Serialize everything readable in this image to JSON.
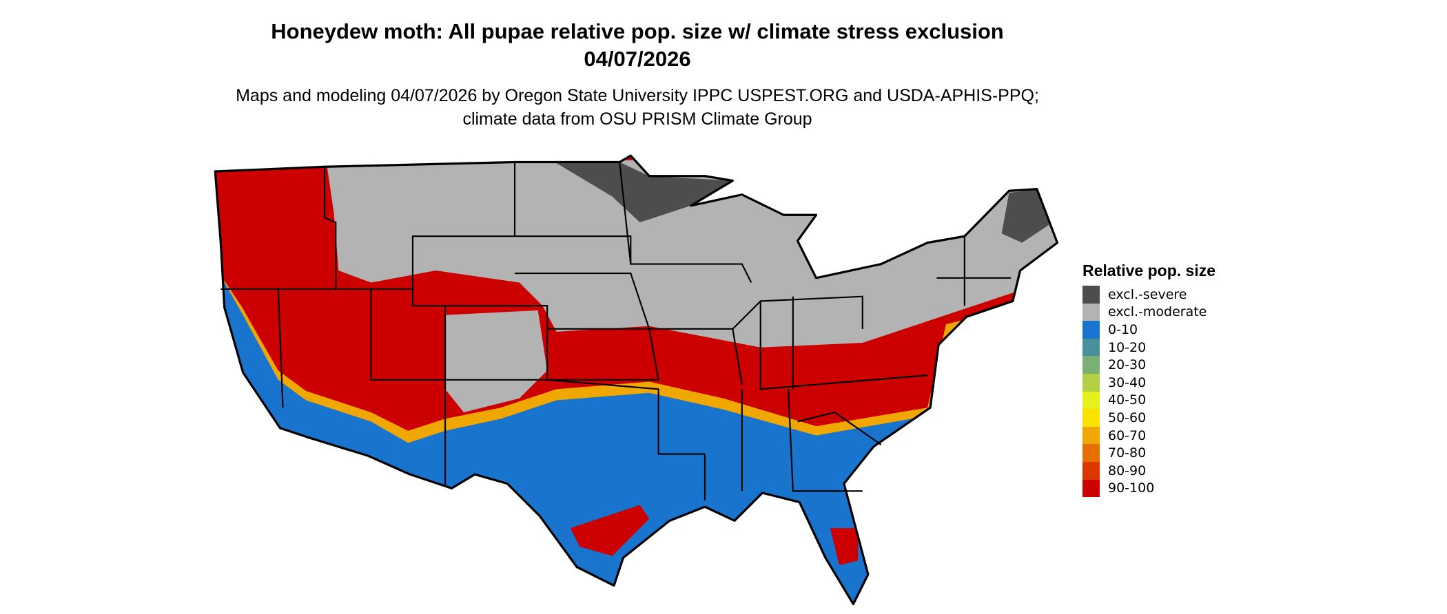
{
  "title": "Honeydew moth: All pupae relative pop. size w/ climate stress exclusion 04/07/2026",
  "subtitle": "Maps and modeling 04/07/2026 by Oregon State University IPPC USPEST.ORG and USDA-APHIS-PPQ; climate data from OSU PRISM Climate Group",
  "legend": {
    "title": "Relative pop. size",
    "items": [
      {
        "label": "excl.-severe",
        "color": "#4d4d4d"
      },
      {
        "label": "excl.-moderate",
        "color": "#b3b3b3"
      },
      {
        "label": "0-10",
        "color": "#1874cd"
      },
      {
        "label": "10-20",
        "color": "#4a8f9c"
      },
      {
        "label": "20-30",
        "color": "#7bb074"
      },
      {
        "label": "30-40",
        "color": "#b3d045"
      },
      {
        "label": "40-50",
        "color": "#e6f01a"
      },
      {
        "label": "50-60",
        "color": "#fae100"
      },
      {
        "label": "60-70",
        "color": "#f0a800"
      },
      {
        "label": "70-80",
        "color": "#e57000"
      },
      {
        "label": "80-90",
        "color": "#db3800"
      },
      {
        "label": "90-100",
        "color": "#cd0000"
      }
    ]
  },
  "map": {
    "region": "Contiguous United States",
    "pattern": "excluded (gray) across northern interior; dark gray in northern Minnesota, Upper Michigan and Maine; 90-100 red along Pacific Northwest, interior West and a transitional band across mid-latitudes; 0-10 blue across the South and southern California"
  }
}
